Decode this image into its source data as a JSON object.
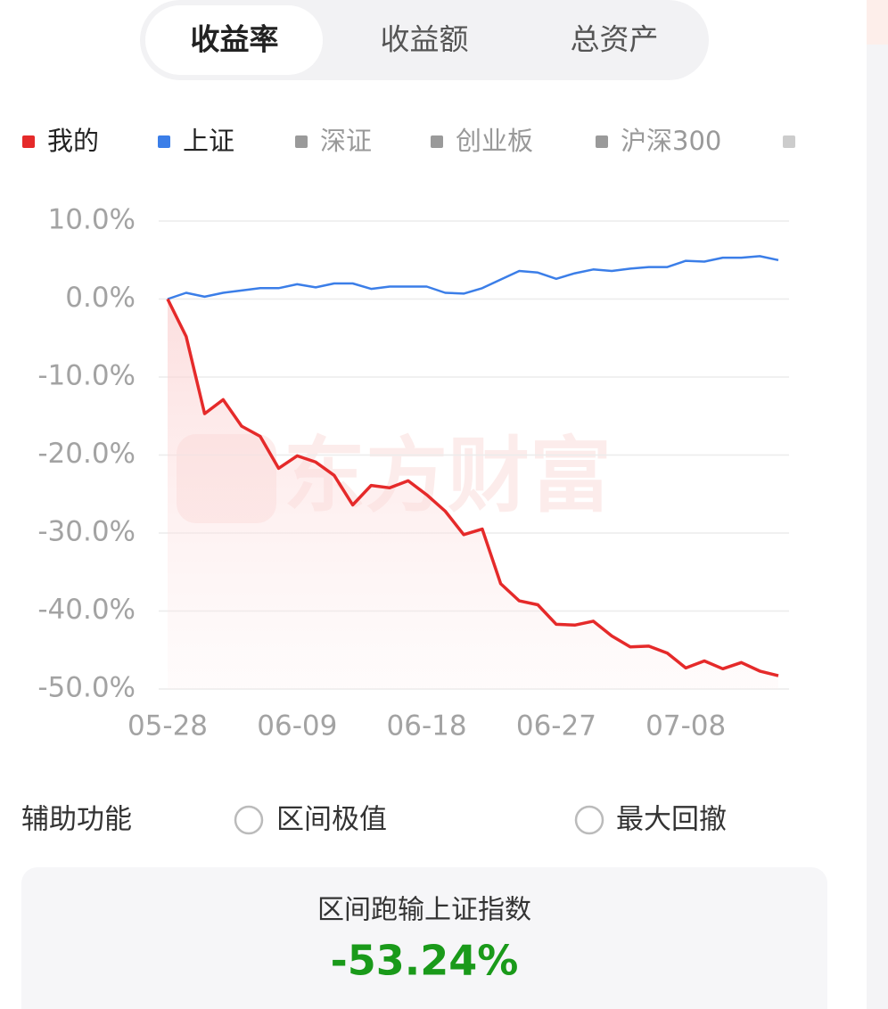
{
  "tabs": [
    "收益率",
    "收益额",
    "总资产"
  ],
  "chart_data": {
    "type": "line",
    "categories": [
      "05-28",
      null,
      null,
      null,
      null,
      null,
      null,
      "06-09",
      null,
      null,
      null,
      null,
      null,
      null,
      "06-18",
      null,
      null,
      null,
      null,
      null,
      null,
      "06-27",
      null,
      null,
      null,
      null,
      null,
      null,
      "07-08",
      null,
      null,
      null,
      null,
      null
    ],
    "series": [
      {
        "name": "我的",
        "color": "#e52a2a",
        "values": [
          0,
          -4.8,
          -14.7,
          -12.9,
          -16.3,
          -17.6,
          -21.7,
          -20.1,
          -20.9,
          -22.6,
          -26.4,
          -23.9,
          -24.2,
          -23.3,
          -25.1,
          -27.2,
          -30.2,
          -29.5,
          -36.5,
          -38.7,
          -39.2,
          -41.7,
          -41.8,
          -41.3,
          -43.2,
          -44.6,
          -44.5,
          -45.4,
          -47.3,
          -46.4,
          -47.4,
          -46.6,
          -47.7,
          -48.3
        ]
      },
      {
        "name": "上证",
        "color": "#3b7ee8",
        "values": [
          0,
          0.8,
          0.3,
          0.8,
          1.1,
          1.4,
          1.4,
          1.9,
          1.5,
          2.0,
          2.0,
          1.3,
          1.6,
          1.6,
          1.6,
          0.8,
          0.7,
          1.4,
          2.5,
          3.6,
          3.4,
          2.6,
          3.3,
          3.8,
          3.6,
          3.9,
          4.1,
          4.1,
          4.9,
          4.8,
          5.3,
          5.3,
          5.5,
          5.0
        ]
      }
    ],
    "inactive_legend": [
      "深证",
      "创业板",
      "沪深300"
    ],
    "ylim": [
      -50,
      10
    ],
    "yticks": [
      {
        "value": 10,
        "label": "10.0%"
      },
      {
        "value": 0,
        "label": "0.0%"
      },
      {
        "value": -10,
        "label": "-10.0%"
      },
      {
        "value": -20,
        "label": "-20.0%"
      },
      {
        "value": -30,
        "label": "-30.0%"
      },
      {
        "value": -40,
        "label": "-40.0%"
      },
      {
        "value": -50,
        "label": "-50.0%"
      }
    ],
    "grid": true,
    "watermark": "东方财富"
  },
  "aux": {
    "label": "辅助功能",
    "options": [
      "区间极值",
      "最大回撤"
    ]
  },
  "summary": {
    "label": "区间跑输上证指数",
    "value": "-53.24%"
  }
}
